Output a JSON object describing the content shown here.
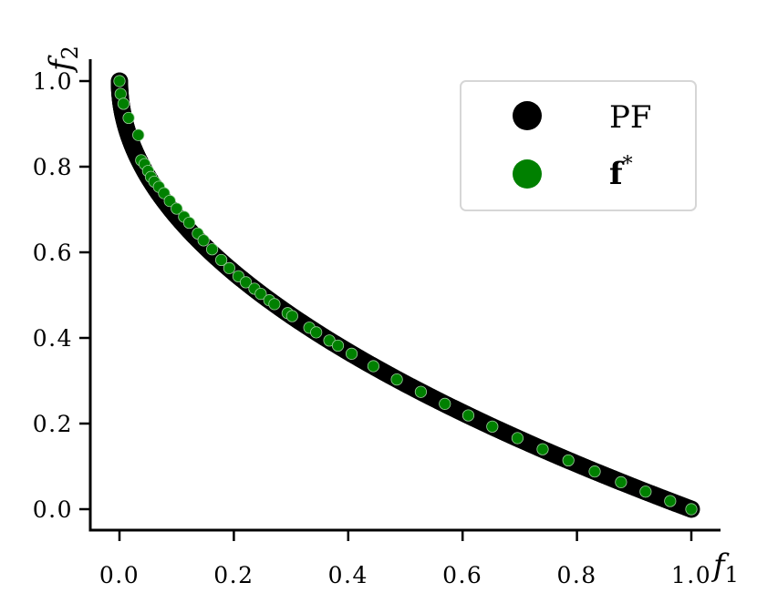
{
  "chart_data": {
    "type": "scatter",
    "xlabel": "f",
    "xlabel_sub": "1",
    "ylabel": "f",
    "ylabel_sub": "2",
    "xlim": [
      -0.05,
      1.05
    ],
    "ylim": [
      -0.05,
      1.05
    ],
    "x_ticks": [
      0.0,
      0.2,
      0.4,
      0.6,
      0.8,
      1.0
    ],
    "x_tick_labels": [
      "0.0",
      "0.2",
      "0.4",
      "0.6",
      "0.8",
      "1.0"
    ],
    "y_ticks": [
      0.0,
      0.2,
      0.4,
      0.6,
      0.8,
      1.0
    ],
    "y_tick_labels": [
      "0.0",
      "0.2",
      "0.4",
      "0.6",
      "0.8",
      "1.0"
    ],
    "grid": false,
    "legend_position": "top-right",
    "series": [
      {
        "name": "PF",
        "color": "#000000",
        "marker": "large-circle",
        "curve": "f2 = 1 - sqrt(f1)",
        "x_range": [
          0.0,
          1.0
        ]
      },
      {
        "name": "f*",
        "name_main": "f",
        "name_sup": "*",
        "color": "#008000",
        "marker": "small-circle",
        "x": [
          0.0,
          0.002,
          0.007,
          0.016,
          0.033,
          0.038,
          0.044,
          0.05,
          0.055,
          0.061,
          0.069,
          0.078,
          0.088,
          0.1,
          0.113,
          0.122,
          0.137,
          0.147,
          0.162,
          0.178,
          0.192,
          0.208,
          0.221,
          0.236,
          0.247,
          0.262,
          0.271,
          0.294,
          0.302,
          0.332,
          0.344,
          0.367,
          0.382,
          0.406,
          0.444,
          0.485,
          0.527,
          0.569,
          0.61,
          0.652,
          0.696,
          0.74,
          0.785,
          0.831,
          0.877,
          0.92,
          0.963,
          1.0
        ],
        "y": [
          1.0,
          0.97,
          0.947,
          0.914,
          0.874,
          0.815,
          0.806,
          0.79,
          0.776,
          0.765,
          0.753,
          0.738,
          0.72,
          0.702,
          0.683,
          0.669,
          0.644,
          0.628,
          0.607,
          0.582,
          0.563,
          0.544,
          0.53,
          0.515,
          0.503,
          0.488,
          0.479,
          0.458,
          0.451,
          0.424,
          0.413,
          0.394,
          0.382,
          0.363,
          0.334,
          0.303,
          0.274,
          0.246,
          0.219,
          0.193,
          0.166,
          0.14,
          0.114,
          0.088,
          0.063,
          0.041,
          0.019,
          0.0
        ]
      }
    ]
  }
}
